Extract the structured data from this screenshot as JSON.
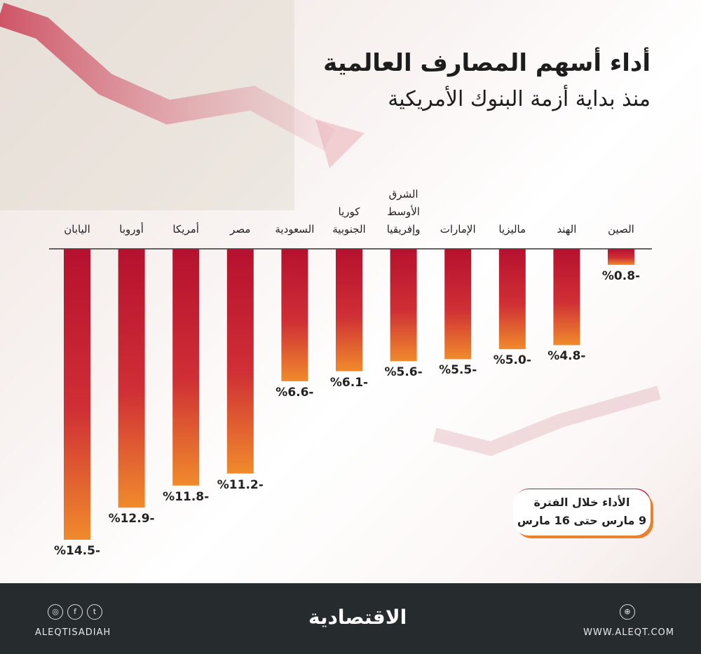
{
  "title": "أداء أسهم المصارف العالمية",
  "subtitle": "منذ بداية أزمة البنوك الأمريكية",
  "note": {
    "line1": "الأداء خلال الفترة",
    "line2": "9 مارس حتى 16 مارس"
  },
  "chart_data": {
    "type": "bar",
    "orientation": "vertical-downward",
    "unit": "%",
    "categories": [
      "الصين",
      "الهند",
      "ماليزيا",
      "الإمارات",
      "الشرق الأوسط وإفريقيا",
      "كوريا الجنوبية",
      "السعودية",
      "مصر",
      "أمريكا",
      "أوروبا",
      "اليابان"
    ],
    "category_lines": [
      [
        "الصين"
      ],
      [
        "الهند"
      ],
      [
        "ماليزيا"
      ],
      [
        "الإمارات"
      ],
      [
        "الشرق",
        "الأوسط",
        "وإفريقيا"
      ],
      [
        "كوريا",
        "الجنوبية"
      ],
      [
        "السعودية"
      ],
      [
        "مصر"
      ],
      [
        "أمريكا"
      ],
      [
        "أوروبا"
      ],
      [
        "اليابان"
      ]
    ],
    "values": [
      -0.8,
      -4.8,
      -5.0,
      -5.5,
      -5.6,
      -6.1,
      -6.6,
      -11.2,
      -11.8,
      -12.9,
      -14.5
    ],
    "labels": [
      "%0.8-",
      "%4.8-",
      "%5.0-",
      "%5.5-",
      "%5.6-",
      "%6.1-",
      "%6.6-",
      "%11.2-",
      "%11.8-",
      "%12.9-",
      "%14.5-"
    ],
    "category_order": "right-to-left",
    "ylim": [
      -14.5,
      0
    ],
    "grid": false,
    "bar_gradient": [
      "#b5112f",
      "#f08a2c"
    ]
  },
  "footer": {
    "handle": "ALEQTISADIAH",
    "site": "WWW.ALEQT.COM",
    "logo": "الاقتصادية",
    "social_icons": [
      "instagram-icon",
      "facebook-icon",
      "twitter-icon"
    ]
  },
  "colors": {
    "footer_bg": "#262b2d",
    "bar_top": "#b5112f",
    "bar_bottom": "#f08a2c"
  }
}
